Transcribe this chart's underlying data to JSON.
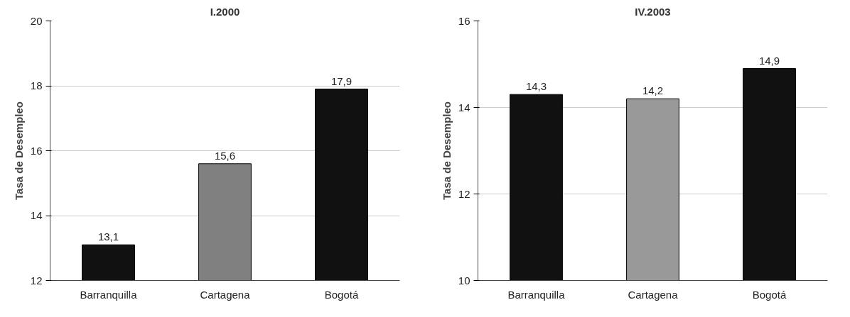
{
  "chart_data": [
    {
      "type": "bar",
      "title": "I.2000",
      "ylabel": "Tasa de Desempleo",
      "categories": [
        "Barranquilla",
        "Cartagena",
        "Bogotá"
      ],
      "values": [
        13.1,
        15.6,
        17.9
      ],
      "colors": [
        "#111111",
        "#808080",
        "#111111"
      ],
      "value_labels": [
        "13,1",
        "15,6",
        "17,9"
      ],
      "ylim": [
        12,
        20
      ],
      "yticks": [
        12,
        14,
        16,
        18,
        20
      ],
      "grid": "y"
    },
    {
      "type": "bar",
      "title": "IV.2003",
      "ylabel": "Tasa de Desempleo",
      "categories": [
        "Barranquilla",
        "Cartagena",
        "Bogotá"
      ],
      "values": [
        14.3,
        14.2,
        14.9
      ],
      "colors": [
        "#111111",
        "#999999",
        "#111111"
      ],
      "value_labels": [
        "14,3",
        "14,2",
        "14,9"
      ],
      "ylim": [
        10,
        16
      ],
      "yticks": [
        10,
        12,
        14,
        16
      ],
      "grid": "y"
    }
  ]
}
